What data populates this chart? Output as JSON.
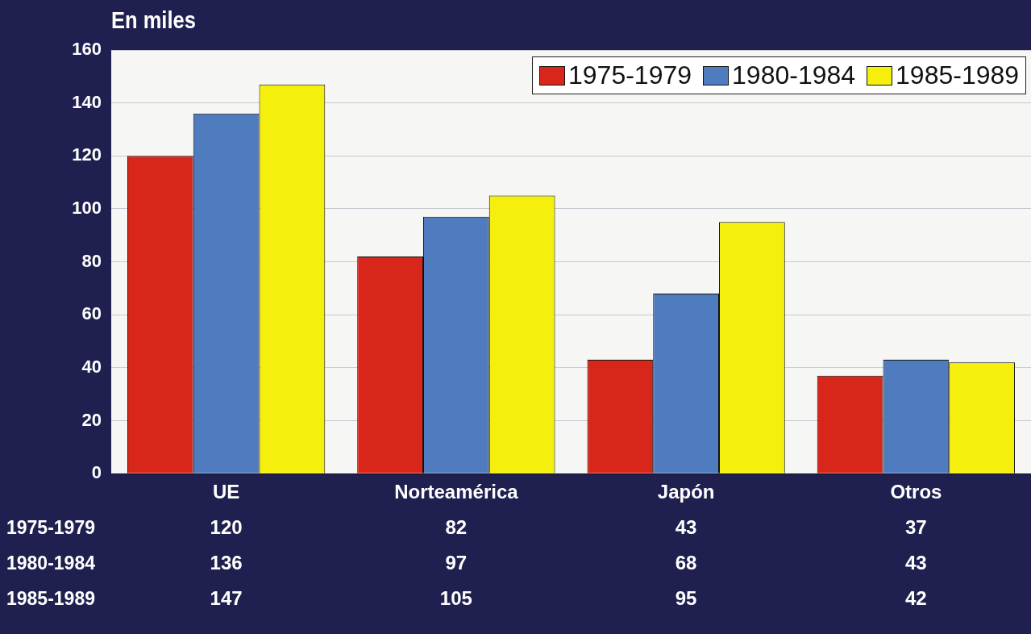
{
  "chart_data": {
    "type": "bar",
    "title": "En miles",
    "categories": [
      "UE",
      "Norteamérica",
      "Japón",
      "Otros"
    ],
    "series": [
      {
        "name": "1975-1979",
        "color": "#d8261a",
        "values": [
          120,
          82,
          43,
          37
        ]
      },
      {
        "name": "1980-1984",
        "color": "#4f7cbf",
        "values": [
          136,
          97,
          68,
          43
        ]
      },
      {
        "name": "1985-1989",
        "color": "#f4ef0c",
        "values": [
          147,
          105,
          95,
          42
        ]
      }
    ],
    "ylim": [
      0,
      160
    ],
    "yticks": [
      0,
      20,
      40,
      60,
      80,
      100,
      120,
      140,
      160
    ],
    "grid": "y",
    "legend": "top right",
    "data_labels": true
  }
}
